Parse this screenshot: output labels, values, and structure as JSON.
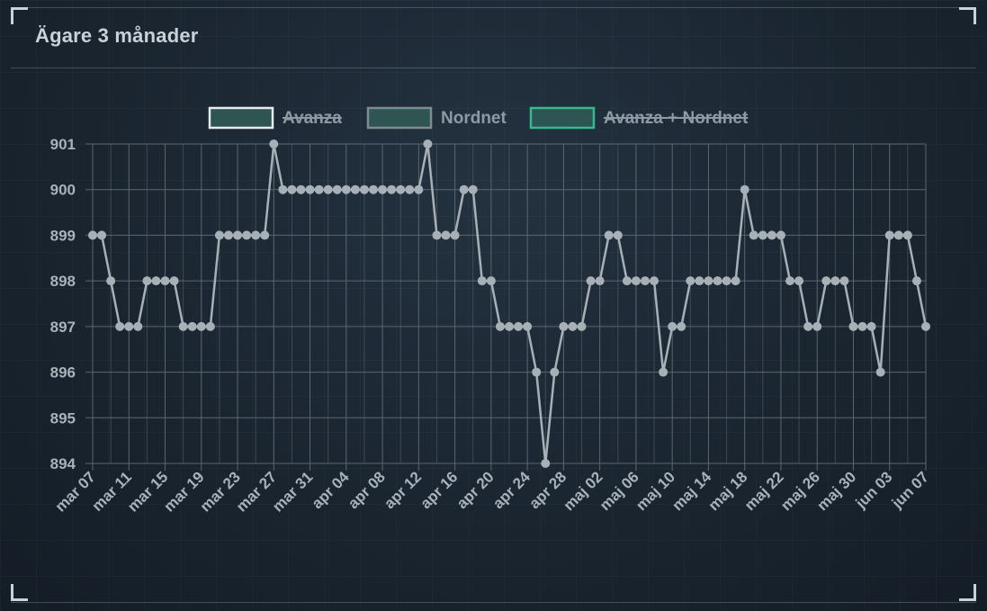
{
  "title": "Ägare 3 månader",
  "colors": {
    "line": "#a7b0b6",
    "grid": "#5b6670",
    "legend_avanza_border": "#e8ecee",
    "legend_nordnet_border": "#7f8b91",
    "legend_combined_border": "#34b98f",
    "legend_fill": "#2e5552"
  },
  "chart_data": {
    "type": "line",
    "legend": [
      {
        "name": "Avanza",
        "hidden": true
      },
      {
        "name": "Nordnet",
        "hidden": false
      },
      {
        "name": "Avanza + Nordnet",
        "hidden": true
      }
    ],
    "legend_position": "top",
    "grid": true,
    "ylim": [
      894,
      901
    ],
    "yticks": [
      "894",
      "895",
      "896",
      "897",
      "898",
      "899",
      "900",
      "901"
    ],
    "xtick_labels": [
      "mar 07",
      "mar 11",
      "mar 15",
      "mar 19",
      "mar 23",
      "mar 27",
      "mar 31",
      "apr 04",
      "apr 08",
      "apr 12",
      "apr 16",
      "apr 20",
      "apr 24",
      "apr 28",
      "maj 02",
      "maj 06",
      "maj 10",
      "maj 14",
      "maj 18",
      "maj 22",
      "maj 26",
      "maj 30",
      "jun 03",
      "jun 07"
    ],
    "series": [
      {
        "name": "Nordnet",
        "values": [
          899,
          899,
          898,
          897,
          897,
          897,
          898,
          898,
          898,
          898,
          897,
          897,
          897,
          897,
          899,
          899,
          899,
          899,
          899,
          899,
          901,
          900,
          900,
          900,
          900,
          900,
          900,
          900,
          900,
          900,
          900,
          900,
          900,
          900,
          900,
          900,
          900,
          901,
          899,
          899,
          899,
          900,
          900,
          898,
          898,
          897,
          897,
          897,
          897,
          896,
          894,
          896,
          897,
          897,
          897,
          898,
          898,
          899,
          899,
          898,
          898,
          898,
          898,
          896,
          897,
          897,
          898,
          898,
          898,
          898,
          898,
          898,
          900,
          899,
          899,
          899,
          899,
          898,
          898,
          897,
          897,
          898,
          898,
          898,
          897,
          897,
          897,
          896,
          899,
          899,
          899,
          898,
          897
        ]
      }
    ]
  }
}
